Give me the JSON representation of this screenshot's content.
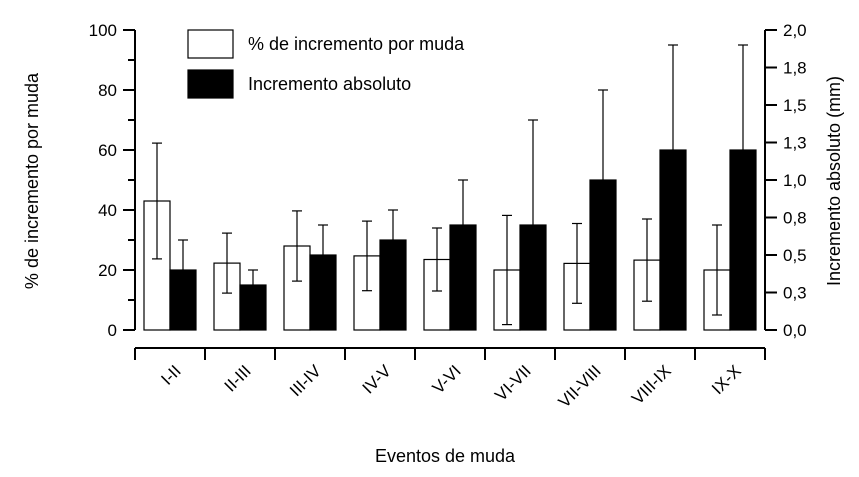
{
  "chart_data": {
    "type": "bar",
    "title": "",
    "xlabel": "Eventos de muda",
    "ylabel_left": "% de incremento por muda",
    "ylabel_right": "Incremento absoluto (mm)",
    "categories": [
      "I-II",
      "II-III",
      "III-IV",
      "IV-V",
      "V-VI",
      "VI-VII",
      "VII-VIII",
      "VIII-IX",
      "IX-X"
    ],
    "ylim_left": [
      0,
      100
    ],
    "yticks_left": [
      "0",
      "20",
      "40",
      "60",
      "80",
      "100"
    ],
    "ylim_right": [
      0,
      2.0
    ],
    "yticks_right": [
      "0,0",
      "0,3",
      "0,5",
      "0,8",
      "1,0",
      "1,3",
      "1,5",
      "1,8",
      "2,0"
    ],
    "grid": false,
    "legend_position": "top-left",
    "series": [
      {
        "name": "% de incremento por muda",
        "axis": "left",
        "fill": "#ffffff",
        "values": [
          43,
          22.3,
          28,
          24.7,
          23.5,
          20,
          22.2,
          23.3,
          20
        ],
        "error": [
          19.3,
          10,
          11.7,
          11.6,
          10.5,
          18.2,
          13.3,
          13.7,
          15
        ]
      },
      {
        "name": "Incremento absoluto",
        "axis": "right",
        "fill": "#000000",
        "values": [
          0.4,
          0.3,
          0.5,
          0.6,
          0.7,
          0.7,
          1.0,
          1.2,
          1.2
        ],
        "error": [
          0.2,
          0.1,
          0.2,
          0.2,
          0.3,
          0.7,
          0.6,
          0.7,
          0.7
        ]
      }
    ]
  }
}
